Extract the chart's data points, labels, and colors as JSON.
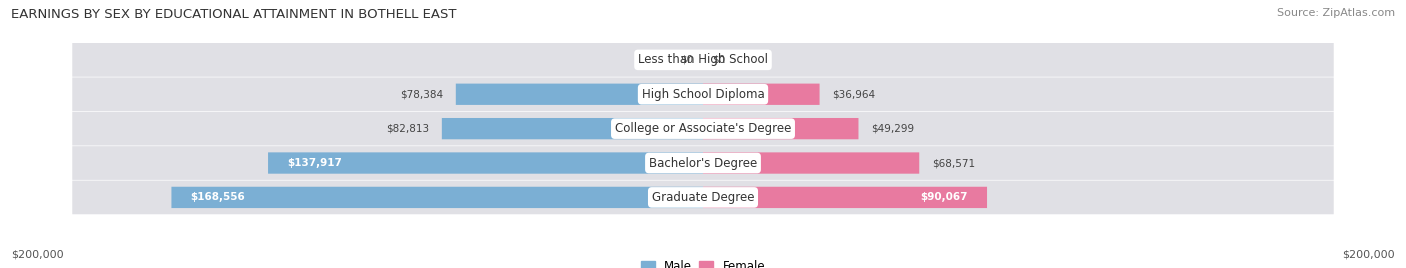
{
  "title": "EARNINGS BY SEX BY EDUCATIONAL ATTAINMENT IN BOTHELL EAST",
  "source": "Source: ZipAtlas.com",
  "categories": [
    "Less than High School",
    "High School Diploma",
    "College or Associate's Degree",
    "Bachelor's Degree",
    "Graduate Degree"
  ],
  "male_values": [
    0,
    78384,
    82813,
    137917,
    168556
  ],
  "female_values": [
    0,
    36964,
    49299,
    68571,
    90067
  ],
  "male_color": "#7bafd4",
  "female_color": "#e87aa0",
  "male_label": "Male",
  "female_label": "Female",
  "max_val": 200000,
  "bg_color": "#ffffff",
  "row_bg_color": "#e0e0e5",
  "title_fontsize": 9.5,
  "source_fontsize": 8,
  "axis_label_left": "$200,000",
  "axis_label_right": "$200,000"
}
